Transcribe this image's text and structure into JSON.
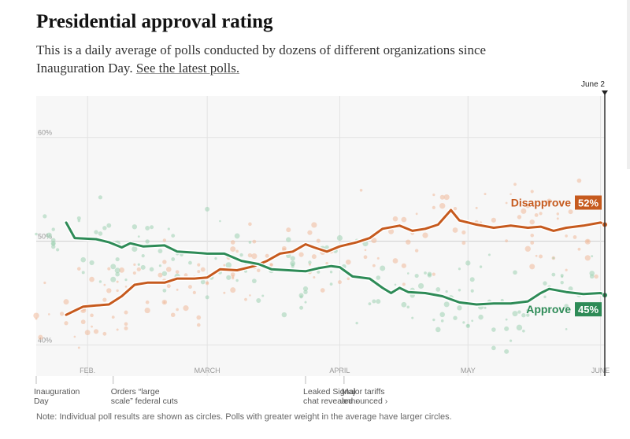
{
  "header": {
    "title": "Presidential approval rating",
    "subtitle_text": "This is a daily average of polls conducted by dozens of different organizations since Inauguration Day.",
    "subtitle_link": "See the latest polls."
  },
  "note": "Note: Individual poll results are shown as circles. Polls with greater weight in the average have larger circles.",
  "colors": {
    "approve": "#2e8b57",
    "disapprove": "#c65a1e",
    "approve_dots": "#9fd1b3",
    "disapprove_dots": "#f0b99a",
    "plot_bg": "#f7f7f7"
  },
  "chart_data": {
    "type": "line",
    "title": "Presidential approval rating",
    "xlabel": "",
    "ylabel": "",
    "x_range": [
      "2025-01-20",
      "2025-06-02"
    ],
    "ylim": [
      37,
      64
    ],
    "y_ticks": [
      {
        "value": 40,
        "label": "40%"
      },
      {
        "value": 50,
        "label": "50%"
      },
      {
        "value": 60,
        "label": "60%"
      }
    ],
    "x_ticks": [
      {
        "date": "2025-02-01",
        "label": "FEB."
      },
      {
        "date": "2025-03-01",
        "label": "MARCH"
      },
      {
        "date": "2025-04-01",
        "label": "APRIL"
      },
      {
        "date": "2025-05-01",
        "label": "MAY"
      },
      {
        "date": "2025-06-01",
        "label": "JUNE"
      }
    ],
    "end_date_label": "June 2",
    "grid": true,
    "series": [
      {
        "name": "Disapprove",
        "end_label": "52%",
        "points": [
          [
            "2025-01-27",
            42.9
          ],
          [
            "2025-01-29",
            43.3
          ],
          [
            "2025-01-31",
            43.7
          ],
          [
            "2025-02-03",
            43.8
          ],
          [
            "2025-02-06",
            43.9
          ],
          [
            "2025-02-09",
            44.7
          ],
          [
            "2025-02-12",
            45.8
          ],
          [
            "2025-02-15",
            46.0
          ],
          [
            "2025-02-19",
            46.0
          ],
          [
            "2025-02-22",
            46.4
          ],
          [
            "2025-02-26",
            46.4
          ],
          [
            "2025-03-01",
            46.5
          ],
          [
            "2025-03-04",
            47.3
          ],
          [
            "2025-03-08",
            47.2
          ],
          [
            "2025-03-12",
            47.6
          ],
          [
            "2025-03-15",
            48.1
          ],
          [
            "2025-03-18",
            48.8
          ],
          [
            "2025-03-21",
            49.0
          ],
          [
            "2025-03-24",
            49.7
          ],
          [
            "2025-03-26",
            49.4
          ],
          [
            "2025-03-29",
            49.0
          ],
          [
            "2025-04-01",
            49.5
          ],
          [
            "2025-04-05",
            49.9
          ],
          [
            "2025-04-08",
            50.3
          ],
          [
            "2025-04-11",
            51.2
          ],
          [
            "2025-04-15",
            51.5
          ],
          [
            "2025-04-18",
            51.0
          ],
          [
            "2025-04-21",
            51.2
          ],
          [
            "2025-04-24",
            51.6
          ],
          [
            "2025-04-27",
            53.0
          ],
          [
            "2025-04-29",
            52.0
          ],
          [
            "2025-05-03",
            51.6
          ],
          [
            "2025-05-07",
            51.3
          ],
          [
            "2025-05-11",
            51.5
          ],
          [
            "2025-05-15",
            51.3
          ],
          [
            "2025-05-18",
            51.4
          ],
          [
            "2025-05-21",
            51.0
          ],
          [
            "2025-05-24",
            51.3
          ],
          [
            "2025-05-28",
            51.5
          ],
          [
            "2025-06-01",
            51.8
          ],
          [
            "2025-06-02",
            51.6
          ]
        ]
      },
      {
        "name": "Approve",
        "end_label": "45%",
        "points": [
          [
            "2025-01-27",
            51.8
          ],
          [
            "2025-01-29",
            50.3
          ],
          [
            "2025-02-03",
            50.2
          ],
          [
            "2025-02-06",
            49.9
          ],
          [
            "2025-02-09",
            49.4
          ],
          [
            "2025-02-11",
            49.8
          ],
          [
            "2025-02-14",
            49.5
          ],
          [
            "2025-02-19",
            49.6
          ],
          [
            "2025-02-22",
            49.0
          ],
          [
            "2025-02-26",
            48.9
          ],
          [
            "2025-03-01",
            48.8
          ],
          [
            "2025-03-05",
            48.8
          ],
          [
            "2025-03-09",
            48.1
          ],
          [
            "2025-03-13",
            47.8
          ],
          [
            "2025-03-16",
            47.3
          ],
          [
            "2025-03-20",
            47.2
          ],
          [
            "2025-03-24",
            47.1
          ],
          [
            "2025-03-27",
            47.4
          ],
          [
            "2025-03-30",
            47.6
          ],
          [
            "2025-04-01",
            47.5
          ],
          [
            "2025-04-04",
            46.6
          ],
          [
            "2025-04-08",
            46.4
          ],
          [
            "2025-04-11",
            45.5
          ],
          [
            "2025-04-13",
            45.0
          ],
          [
            "2025-04-15",
            45.5
          ],
          [
            "2025-04-17",
            45.1
          ],
          [
            "2025-04-21",
            45.0
          ],
          [
            "2025-04-25",
            44.7
          ],
          [
            "2025-04-29",
            44.1
          ],
          [
            "2025-05-03",
            43.9
          ],
          [
            "2025-05-07",
            44.0
          ],
          [
            "2025-05-11",
            44.0
          ],
          [
            "2025-05-15",
            44.2
          ],
          [
            "2025-05-18",
            45.0
          ],
          [
            "2025-05-20",
            45.4
          ],
          [
            "2025-05-24",
            45.1
          ],
          [
            "2025-05-28",
            44.9
          ],
          [
            "2025-06-01",
            45.0
          ],
          [
            "2025-06-02",
            44.8
          ]
        ]
      }
    ],
    "annotations": [
      {
        "date": "2025-01-20",
        "lines": [
          "Inauguration",
          "Day"
        ],
        "arrow": ""
      },
      {
        "date": "2025-02-07",
        "lines": [
          "Orders “large",
          "scale” federal cuts"
        ],
        "arrow": ""
      },
      {
        "date": "2025-03-24",
        "lines": [
          "Leaked Signal",
          "chat revealed"
        ],
        "arrow": "›"
      },
      {
        "date": "2025-04-02",
        "lines": [
          "Major tariffs",
          "announced"
        ],
        "arrow": "›"
      }
    ]
  }
}
